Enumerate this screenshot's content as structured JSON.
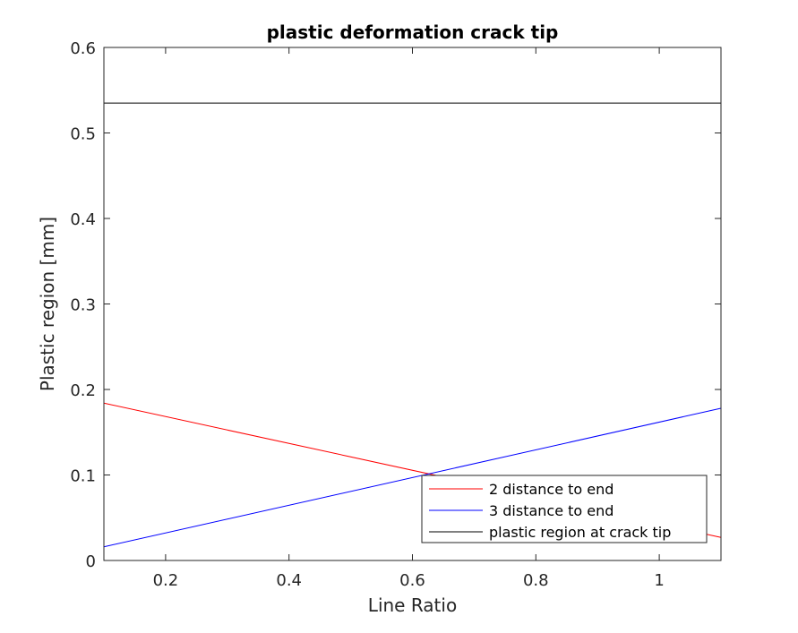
{
  "chart_data": {
    "type": "line",
    "title": "plastic deformation crack tip",
    "xlabel": "Line Ratio",
    "ylabel": "Plastic region [mm]",
    "xlim": [
      0.1,
      1.1
    ],
    "ylim": [
      0,
      0.6
    ],
    "xticks": [
      0.2,
      0.4,
      0.6,
      0.8,
      1
    ],
    "xtick_labels": [
      "0.2",
      "0.4",
      "0.6",
      "0.8",
      "1"
    ],
    "yticks": [
      0,
      0.1,
      0.2,
      0.3,
      0.4,
      0.5,
      0.6
    ],
    "ytick_labels": [
      "0",
      "0.1",
      "0.2",
      "0.3",
      "0.4",
      "0.5",
      "0.6"
    ],
    "grid": false,
    "legend_position": "bottom-right",
    "series": [
      {
        "name": "2 distance to end",
        "color": "#ff0000",
        "x": [
          0.1,
          1.1
        ],
        "y": [
          0.184,
          0.027
        ]
      },
      {
        "name": "3 distance to end",
        "color": "#0000ff",
        "x": [
          0.1,
          1.1
        ],
        "y": [
          0.016,
          0.178
        ]
      },
      {
        "name": "plastic region at crack tip",
        "color": "#000000",
        "x": [
          0.1,
          1.1
        ],
        "y": [
          0.535,
          0.535
        ]
      }
    ]
  }
}
